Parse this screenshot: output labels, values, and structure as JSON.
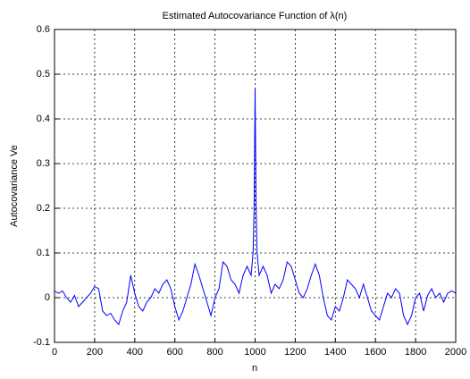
{
  "chart_data": {
    "type": "line",
    "title": "Estimated Autocovariance Function of λ(n)",
    "xlabel": "n",
    "ylabel": "Autocovariance Ve",
    "xlim": [
      0,
      2000
    ],
    "xticks": [
      0,
      200,
      400,
      600,
      800,
      1000,
      1200,
      1400,
      1600,
      1800,
      2000
    ],
    "ylim": [
      -0.1,
      0.6
    ],
    "yticks": [
      -0.1,
      0,
      0.1,
      0.2,
      0.3,
      0.4,
      0.5,
      0.6
    ],
    "grid": true,
    "series": [
      {
        "color": "#0000ff",
        "x": [
          0,
          20,
          40,
          60,
          80,
          100,
          120,
          140,
          160,
          180,
          200,
          220,
          240,
          260,
          280,
          300,
          320,
          340,
          360,
          380,
          400,
          420,
          440,
          460,
          480,
          500,
          520,
          540,
          560,
          580,
          600,
          620,
          640,
          660,
          680,
          700,
          720,
          740,
          760,
          780,
          800,
          820,
          840,
          860,
          880,
          900,
          920,
          940,
          960,
          980,
          990,
          995,
          1000,
          1005,
          1010,
          1020,
          1040,
          1060,
          1080,
          1100,
          1120,
          1140,
          1160,
          1180,
          1200,
          1220,
          1240,
          1260,
          1280,
          1300,
          1320,
          1340,
          1360,
          1380,
          1400,
          1420,
          1440,
          1460,
          1480,
          1500,
          1520,
          1540,
          1560,
          1580,
          1600,
          1620,
          1640,
          1660,
          1680,
          1700,
          1720,
          1740,
          1760,
          1780,
          1800,
          1820,
          1840,
          1860,
          1880,
          1900,
          1920,
          1940,
          1960,
          1980,
          2000
        ],
        "values": [
          0.015,
          0.01,
          0.015,
          0.0,
          -0.01,
          0.005,
          -0.02,
          -0.01,
          0.0,
          0.01,
          0.025,
          0.02,
          -0.03,
          -0.04,
          -0.035,
          -0.05,
          -0.06,
          -0.03,
          -0.01,
          0.05,
          0.01,
          -0.02,
          -0.03,
          -0.01,
          0.0,
          0.02,
          0.01,
          0.03,
          0.04,
          0.02,
          -0.02,
          -0.05,
          -0.03,
          0.0,
          0.03,
          0.075,
          0.05,
          0.02,
          -0.01,
          -0.04,
          0.0,
          0.02,
          0.08,
          0.07,
          0.04,
          0.03,
          0.01,
          0.05,
          0.07,
          0.05,
          0.1,
          0.2,
          0.47,
          0.2,
          0.1,
          0.05,
          0.07,
          0.05,
          0.01,
          0.03,
          0.02,
          0.04,
          0.08,
          0.07,
          0.04,
          0.01,
          0.0,
          0.02,
          0.05,
          0.075,
          0.05,
          0.0,
          -0.04,
          -0.05,
          -0.02,
          -0.03,
          0.0,
          0.04,
          0.03,
          0.02,
          0.0,
          0.03,
          0.0,
          -0.03,
          -0.04,
          -0.05,
          -0.02,
          0.01,
          0.0,
          0.02,
          0.01,
          -0.04,
          -0.06,
          -0.04,
          0.0,
          0.01,
          -0.03,
          0.005,
          0.02,
          0.0,
          0.01,
          -0.01,
          0.01,
          0.015,
          0.01
        ]
      }
    ]
  }
}
